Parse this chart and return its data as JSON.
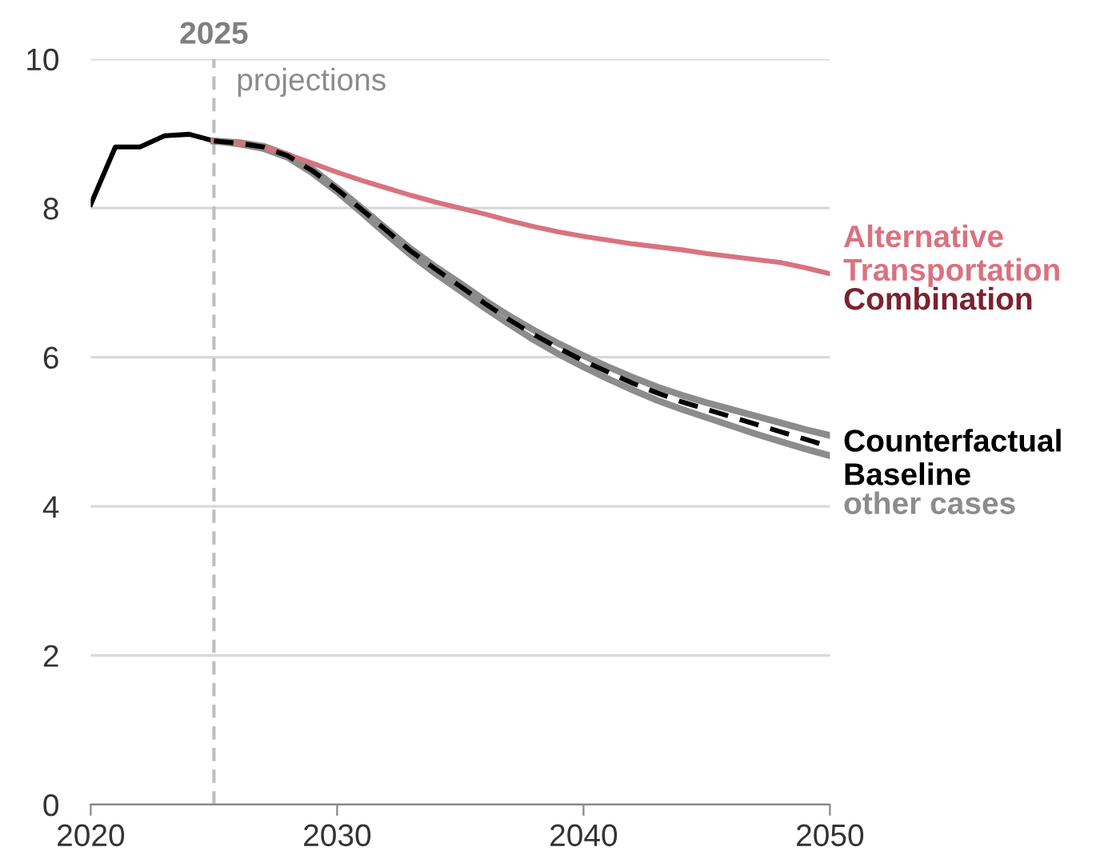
{
  "chart_data": {
    "type": "line",
    "xlim": [
      2020,
      2050
    ],
    "xticks": [
      2020,
      2030,
      2040,
      2050
    ],
    "ylim": [
      0,
      10
    ],
    "yticks": [
      0,
      2,
      4,
      6,
      8,
      10
    ],
    "grid": "y",
    "marker": "none",
    "ref_lines": [
      {
        "axis": "x",
        "value": 2025,
        "label": "2025",
        "color": "#bfbfbf",
        "line_style": "dashed"
      }
    ],
    "annotations": [
      {
        "text": "projections",
        "x": 2025,
        "y": 10
      }
    ],
    "series": [
      {
        "color": "#000000",
        "line_style": "solid",
        "x": [
          2020,
          2021,
          2022,
          2023,
          2024,
          2025
        ],
        "values": [
          8.05,
          8.82,
          8.82,
          8.97,
          8.99,
          8.9
        ]
      },
      {
        "name": "Counterfactual Baseline",
        "color": "#000000",
        "line_style": "dashed",
        "x": [
          2025,
          2026,
          2027,
          2028,
          2029,
          2030,
          2031,
          2032,
          2033,
          2034,
          2035,
          2036,
          2037,
          2038,
          2039,
          2040,
          2041,
          2042,
          2043,
          2044,
          2045,
          2046,
          2047,
          2048,
          2049,
          2050
        ],
        "values": [
          8.9,
          8.87,
          8.82,
          8.7,
          8.5,
          8.25,
          7.98,
          7.7,
          7.42,
          7.18,
          6.95,
          6.72,
          6.5,
          6.3,
          6.12,
          5.95,
          5.8,
          5.65,
          5.52,
          5.4,
          5.3,
          5.2,
          5.1,
          5.0,
          4.9,
          4.8
        ]
      },
      {
        "name": "other cases",
        "color": "#8c8c8c",
        "line_style": "solid",
        "x": [
          2025,
          2026,
          2027,
          2028,
          2029,
          2030,
          2031,
          2032,
          2033,
          2034,
          2035,
          2036,
          2037,
          2038,
          2039,
          2040,
          2041,
          2042,
          2043,
          2044,
          2045,
          2046,
          2047,
          2048,
          2049,
          2050
        ],
        "values": [
          8.9,
          8.88,
          8.83,
          8.71,
          8.52,
          8.27,
          8.0,
          7.72,
          7.45,
          7.21,
          6.99,
          6.76,
          6.55,
          6.36,
          6.18,
          6.02,
          5.87,
          5.73,
          5.6,
          5.49,
          5.39,
          5.3,
          5.21,
          5.12,
          5.03,
          4.95
        ]
      },
      {
        "color": "#8c8c8c",
        "line_style": "solid",
        "x": [
          2025,
          2026,
          2027,
          2028,
          2029,
          2030,
          2031,
          2032,
          2033,
          2034,
          2035,
          2036,
          2037,
          2038,
          2039,
          2040,
          2041,
          2042,
          2043,
          2044,
          2045,
          2046,
          2047,
          2048,
          2049,
          2050
        ],
        "values": [
          8.9,
          8.86,
          8.8,
          8.68,
          8.47,
          8.22,
          7.94,
          7.65,
          7.37,
          7.12,
          6.89,
          6.66,
          6.44,
          6.23,
          6.04,
          5.87,
          5.71,
          5.56,
          5.42,
          5.3,
          5.19,
          5.08,
          4.97,
          4.87,
          4.77,
          4.68
        ]
      },
      {
        "name": "Alternative Transportation",
        "color": "#d9727f",
        "line_style": "solid",
        "x": [
          2025,
          2026,
          2027,
          2028,
          2029,
          2030,
          2031,
          2032,
          2033,
          2034,
          2035,
          2036,
          2037,
          2038,
          2039,
          2040,
          2041,
          2042,
          2043,
          2044,
          2045,
          2046,
          2047,
          2048,
          2049,
          2050
        ],
        "values": [
          8.9,
          8.87,
          8.82,
          8.72,
          8.6,
          8.48,
          8.37,
          8.27,
          8.17,
          8.08,
          8.0,
          7.92,
          7.83,
          7.75,
          7.68,
          7.62,
          7.57,
          7.52,
          7.48,
          7.44,
          7.39,
          7.35,
          7.31,
          7.27,
          7.2,
          7.12
        ]
      },
      {
        "name": "Combination",
        "color": "#7b2230",
        "line_style": "solid"
      }
    ]
  }
}
